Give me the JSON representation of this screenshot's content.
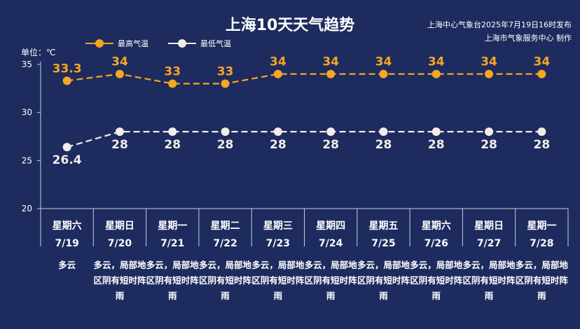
{
  "title": "上海10天天气趋势",
  "publisher": {
    "line1": "上海中心气象台2025年7月19日16时发布",
    "line2": "上海市气象服务中心 制作"
  },
  "unit_label": "单位：℃",
  "colors": {
    "background": "#1d2b5e",
    "high": "#f5a623",
    "low": "#f3ece8",
    "axis": "#c9cfe6"
  },
  "chart_data": {
    "type": "line",
    "title": "上海10天天气趋势",
    "ylabel": "单位：℃",
    "ylim": [
      20,
      35
    ],
    "yticks": [
      20,
      25,
      30,
      35
    ],
    "x": [
      "7/19",
      "7/20",
      "7/21",
      "7/22",
      "7/23",
      "7/24",
      "7/25",
      "7/26",
      "7/27",
      "7/28"
    ],
    "series": [
      {
        "name": "最高气温",
        "values": [
          33.3,
          34,
          33,
          33,
          34,
          34,
          34,
          34,
          34,
          34
        ]
      },
      {
        "name": "最低气温",
        "values": [
          26.4,
          28,
          28,
          28,
          28,
          28,
          28,
          28,
          28,
          28
        ]
      }
    ],
    "legend": "top-left"
  },
  "days": [
    {
      "weekday": "星期六",
      "date": "7/19",
      "desc": "多云"
    },
    {
      "weekday": "星期日",
      "date": "7/20",
      "desc": "多云，局部地区阴有短时阵雨"
    },
    {
      "weekday": "星期一",
      "date": "7/21",
      "desc": "多云，局部地区阴有短时阵雨"
    },
    {
      "weekday": "星期二",
      "date": "7/22",
      "desc": "多云，局部地区阴有短时阵雨"
    },
    {
      "weekday": "星期三",
      "date": "7/23",
      "desc": "多云，局部地区阴有短时阵雨"
    },
    {
      "weekday": "星期四",
      "date": "7/24",
      "desc": "多云，局部地区阴有短时阵雨"
    },
    {
      "weekday": "星期五",
      "date": "7/25",
      "desc": "多云，局部地区阴有短时阵雨"
    },
    {
      "weekday": "星期六",
      "date": "7/26",
      "desc": "多云，局部地区阴有短时阵雨"
    },
    {
      "weekday": "星期日",
      "date": "7/27",
      "desc": "多云，局部地区阴有短时阵雨"
    },
    {
      "weekday": "星期一",
      "date": "7/28",
      "desc": "多云，局部地区阴有短时阵雨"
    }
  ]
}
